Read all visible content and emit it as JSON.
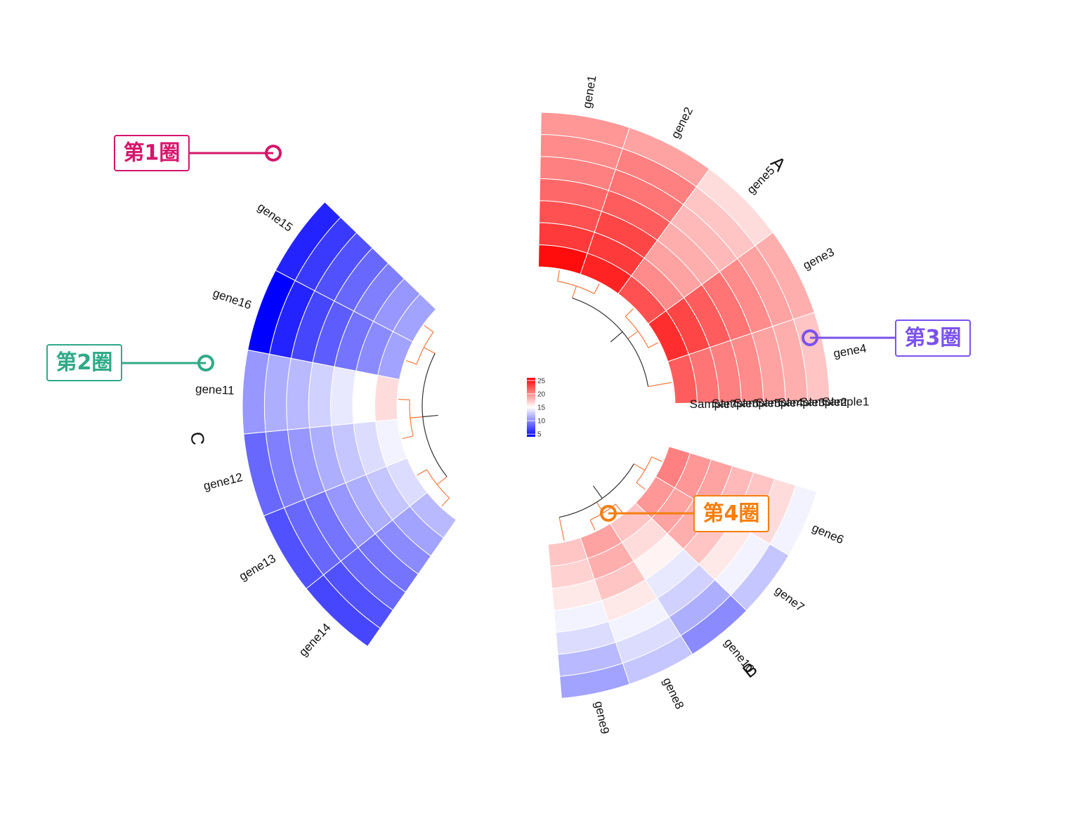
{
  "chart_data": {
    "type": "heatmap",
    "layout": "circular",
    "samples": [
      "Sample1",
      "Sample2",
      "Sample3",
      "Sample4",
      "Sample5",
      "Sample6",
      "Sample7"
    ],
    "sectors": [
      {
        "name": "A",
        "genes": [
          "gene1",
          "gene2",
          "gene5",
          "gene3",
          "gene4"
        ],
        "values": [
          [
            19.5,
            20.0,
            20.5,
            21.5,
            22.5,
            23.5,
            25.5
          ],
          [
            19.0,
            20.5,
            21.0,
            22.0,
            23.0,
            23.5,
            24.5
          ],
          [
            16.5,
            17.5,
            18.0,
            18.5,
            19.0,
            20.0,
            22.5
          ],
          [
            18.5,
            19.0,
            20.0,
            21.0,
            22.0,
            23.0,
            24.0
          ],
          [
            17.5,
            18.5,
            19.0,
            20.0,
            20.5,
            21.0,
            22.0
          ]
        ]
      },
      {
        "name": "B",
        "genes": [
          "gene6",
          "gene7",
          "gene10",
          "gene8",
          "gene9"
        ],
        "values": [
          [
            14.5,
            16.5,
            17.5,
            18.0,
            19.0,
            19.5,
            20.5
          ],
          [
            12.5,
            14.5,
            16.0,
            17.5,
            18.5,
            19.0,
            19.5
          ],
          [
            10.0,
            11.5,
            13.0,
            14.0,
            15.5,
            16.5,
            17.5
          ],
          [
            12.5,
            13.5,
            14.5,
            16.0,
            17.5,
            18.5,
            19.0
          ],
          [
            11.0,
            12.0,
            13.5,
            14.5,
            16.0,
            17.0,
            17.5
          ]
        ]
      },
      {
        "name": "C",
        "genes": [
          "gene14",
          "gene13",
          "gene12",
          "gene11",
          "gene16",
          "gene15"
        ],
        "values": [
          [
            7.0,
            7.5,
            8.5,
            9.0,
            10.0,
            11.0,
            12.0
          ],
          [
            7.5,
            8.5,
            9.0,
            10.5,
            11.5,
            12.5,
            13.5
          ],
          [
            8.5,
            9.5,
            10.5,
            11.5,
            12.5,
            13.5,
            14.5
          ],
          [
            10.5,
            11.5,
            12.0,
            13.0,
            14.0,
            15.0,
            16.5
          ],
          [
            4.0,
            5.5,
            7.0,
            8.0,
            9.0,
            10.0,
            11.0
          ],
          [
            5.5,
            6.5,
            7.5,
            8.5,
            9.5,
            10.5,
            11.0
          ]
        ]
      }
    ],
    "legend": {
      "ticks": [
        25,
        20,
        15,
        10,
        5
      ],
      "min": 4,
      "max": 26,
      "position": "center"
    },
    "colors": {
      "low": "#0000ff",
      "mid": "#ffffff",
      "high": "#ff0000",
      "dendro_inner": "#f47a42",
      "dendro_outer": "#333333"
    }
  },
  "annotations": [
    {
      "text": "第1圈",
      "color": "#d6156c"
    },
    {
      "text": "第2圈",
      "color": "#2faa88"
    },
    {
      "text": "第3圈",
      "color": "#7b52ee"
    },
    {
      "text": "第4圈",
      "color": "#f57f0f"
    }
  ]
}
